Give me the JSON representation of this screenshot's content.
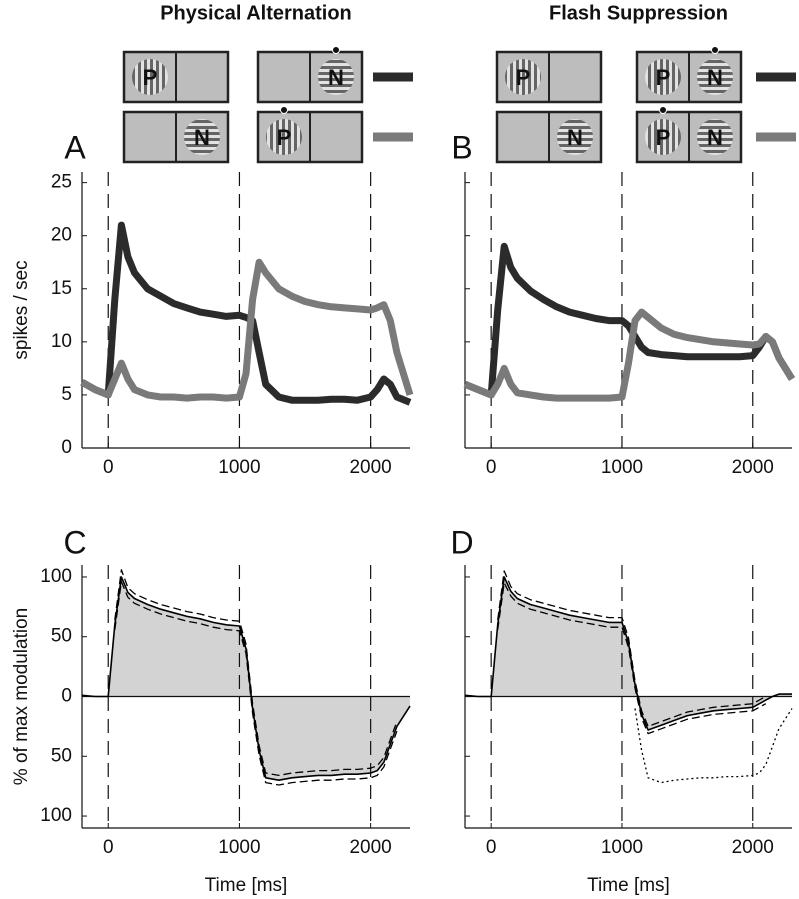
{
  "chart_data": [
    {
      "type": "line",
      "panel": "A",
      "title": "Physical Alternation",
      "ylabel": "spikes / sec",
      "x": [
        -200,
        -100,
        0,
        50,
        100,
        150,
        200,
        300,
        400,
        500,
        600,
        700,
        800,
        900,
        1000,
        1050,
        1100,
        1150,
        1200,
        1300,
        1400,
        1500,
        1600,
        1700,
        1800,
        1900,
        2000,
        2050,
        2100,
        2150,
        2200,
        2300
      ],
      "series": [
        {
          "color": "#2b2b2b",
          "stimuli": [
            [
              "P",
              null
            ],
            [
              null,
              "N"
            ]
          ],
          "values": [
            6.2,
            5.5,
            5,
            14,
            21,
            18,
            16.5,
            15,
            14.3,
            13.6,
            13.2,
            12.8,
            12.6,
            12.4,
            12.5,
            12.3,
            12,
            9,
            6,
            4.8,
            4.5,
            4.5,
            4.5,
            4.6,
            4.6,
            4.5,
            4.8,
            5.5,
            6.5,
            6,
            4.8,
            4.3
          ]
        },
        {
          "color": "#7a7a7a",
          "stimuli": [
            [
              null,
              "N"
            ],
            [
              "P",
              null
            ]
          ],
          "values": [
            6.2,
            5.5,
            5,
            6.5,
            8,
            6.5,
            5.5,
            5,
            4.8,
            4.8,
            4.7,
            4.8,
            4.8,
            4.7,
            4.8,
            7,
            14,
            17.5,
            16.5,
            15,
            14.3,
            13.8,
            13.5,
            13.3,
            13.2,
            13.1,
            13,
            13.2,
            13.5,
            12,
            9,
            5
          ]
        }
      ],
      "xlim": [
        -200,
        2300
      ],
      "ylim": [
        0,
        26
      ],
      "xticks": [
        0,
        1000,
        2000
      ],
      "yticks": [
        0,
        5,
        10,
        15,
        20,
        25
      ],
      "vlines": [
        0,
        1000,
        2000
      ]
    },
    {
      "type": "line",
      "panel": "B",
      "title": "Flash Suppression",
      "x": [
        -200,
        -100,
        0,
        50,
        100,
        150,
        200,
        300,
        400,
        500,
        600,
        700,
        800,
        900,
        1000,
        1050,
        1100,
        1150,
        1200,
        1300,
        1400,
        1500,
        1600,
        1700,
        1800,
        1900,
        2000,
        2050,
        2100,
        2150,
        2200,
        2300
      ],
      "series": [
        {
          "color": "#2b2b2b",
          "stimuli": [
            [
              "P",
              null
            ],
            [
              "P",
              "N"
            ]
          ],
          "values": [
            6,
            5.5,
            5,
            13,
            19,
            17,
            16,
            14.8,
            14,
            13.3,
            12.8,
            12.5,
            12.2,
            12,
            12,
            11.5,
            10.5,
            9.5,
            9,
            8.8,
            8.7,
            8.6,
            8.6,
            8.6,
            8.6,
            8.6,
            8.7,
            9.5,
            10.5,
            10,
            8.5,
            6.5
          ]
        },
        {
          "color": "#7a7a7a",
          "stimuli": [
            [
              null,
              "N"
            ],
            [
              "P",
              "N"
            ]
          ],
          "values": [
            6,
            5.5,
            5,
            6,
            7.5,
            6,
            5.2,
            5,
            4.8,
            4.7,
            4.7,
            4.7,
            4.7,
            4.7,
            4.8,
            8,
            12,
            12.8,
            12.3,
            11.3,
            10.7,
            10.4,
            10.2,
            10,
            9.9,
            9.8,
            9.7,
            9.8,
            10.5,
            10,
            8.5,
            6.5
          ]
        }
      ],
      "xlim": [
        -200,
        2300
      ],
      "ylim": [
        0,
        26
      ],
      "xticks": [
        0,
        1000,
        2000
      ],
      "yticks": [
        0,
        5,
        10,
        15,
        20,
        25
      ],
      "vlines": [
        0,
        1000,
        2000
      ]
    },
    {
      "type": "area",
      "panel": "C",
      "ylabel": "% of max modulation",
      "xlabel": "Time [ms]",
      "fill": "#d3d3d3",
      "x": [
        -200,
        -100,
        0,
        50,
        100,
        150,
        200,
        300,
        400,
        500,
        600,
        700,
        800,
        900,
        1000,
        1050,
        1100,
        1150,
        1200,
        1300,
        1400,
        1500,
        1600,
        1700,
        1800,
        1900,
        2000,
        2050,
        2100,
        2150,
        2200,
        2300
      ],
      "series": [
        {
          "color": "#000000",
          "style": "solid",
          "filled": true,
          "values": [
            1,
            0,
            0,
            60,
            100,
            87,
            82,
            77,
            73,
            70,
            67,
            65,
            62,
            60,
            59,
            40,
            -10,
            -45,
            -68,
            -70,
            -68,
            -67,
            -66,
            -66,
            -65,
            -65,
            -64,
            -62,
            -55,
            -40,
            -25,
            -8
          ]
        },
        {
          "color": "#000000",
          "style": "dashed",
          "values": [
            null,
            null,
            null,
            64,
            106,
            91,
            86,
            81,
            77,
            74,
            71,
            69,
            66,
            64,
            63,
            44,
            -6,
            -41,
            -64,
            -66,
            -64,
            -63,
            -62,
            -62,
            -61,
            -61,
            -60,
            -58,
            -51,
            -36,
            -21,
            null
          ]
        },
        {
          "color": "#000000",
          "style": "dashed",
          "values": [
            null,
            null,
            null,
            56,
            96,
            83,
            78,
            73,
            69,
            66,
            63,
            61,
            58,
            56,
            55,
            36,
            -14,
            -49,
            -72,
            -74,
            -72,
            -71,
            -70,
            -70,
            -69,
            -69,
            -68,
            -66,
            -59,
            -44,
            -29,
            null
          ]
        }
      ],
      "xlim": [
        -200,
        2300
      ],
      "ylim": [
        -110,
        110
      ],
      "xticks": [
        0,
        1000,
        2000
      ],
      "yticks": [
        {
          "value": -100,
          "label": "100"
        },
        {
          "value": -50,
          "label": "50"
        },
        0,
        50,
        100
      ],
      "vlines": [
        0,
        1000,
        2000
      ]
    },
    {
      "type": "area",
      "panel": "D",
      "xlabel": "Time [ms]",
      "fill": "#d3d3d3",
      "x": [
        -200,
        -100,
        0,
        50,
        100,
        150,
        200,
        300,
        400,
        500,
        600,
        700,
        800,
        900,
        1000,
        1050,
        1100,
        1150,
        1200,
        1300,
        1400,
        1500,
        1600,
        1700,
        1800,
        1900,
        2000,
        2050,
        2100,
        2150,
        2200,
        2300
      ],
      "series": [
        {
          "color": "#000000",
          "style": "solid",
          "filled": true,
          "values": [
            1,
            0,
            0,
            60,
            100,
            88,
            82,
            77,
            74,
            71,
            68,
            66,
            64,
            62,
            62,
            45,
            10,
            -15,
            -28,
            -24,
            -20,
            -16,
            -14,
            -12,
            -11,
            -10,
            -9,
            -6,
            -3,
            0,
            2,
            2
          ]
        },
        {
          "color": "#000000",
          "style": "dashed",
          "values": [
            null,
            null,
            null,
            64,
            105,
            92,
            86,
            81,
            78,
            75,
            72,
            70,
            68,
            66,
            66,
            49,
            13,
            -12,
            -25,
            -21,
            -17,
            -13,
            -11,
            -9,
            -8,
            -7,
            -6,
            -3,
            0,
            null,
            null,
            null
          ]
        },
        {
          "color": "#000000",
          "style": "dashed",
          "values": [
            null,
            null,
            null,
            56,
            95,
            84,
            78,
            73,
            70,
            67,
            64,
            62,
            60,
            58,
            58,
            41,
            7,
            -18,
            -31,
            -27,
            -23,
            -19,
            -17,
            -15,
            -14,
            -13,
            -12,
            -9,
            -6,
            null,
            null,
            null
          ]
        },
        {
          "color": "#000000",
          "style": "dotted",
          "values": [
            null,
            null,
            null,
            null,
            null,
            null,
            null,
            null,
            null,
            null,
            null,
            null,
            null,
            null,
            null,
            null,
            -10,
            -45,
            -68,
            -72,
            -70,
            -69,
            -68,
            -68,
            -67,
            -67,
            -66,
            -64,
            -57,
            -42,
            -27,
            -10
          ]
        }
      ],
      "xlim": [
        -200,
        2300
      ],
      "ylim": [
        -110,
        110
      ],
      "xticks": [
        0,
        1000,
        2000
      ],
      "yticks": [
        {
          "value": -100,
          "label": "100"
        },
        {
          "value": -50,
          "label": "50"
        },
        0,
        50,
        100
      ],
      "vlines": [
        0,
        1000,
        2000
      ]
    }
  ]
}
